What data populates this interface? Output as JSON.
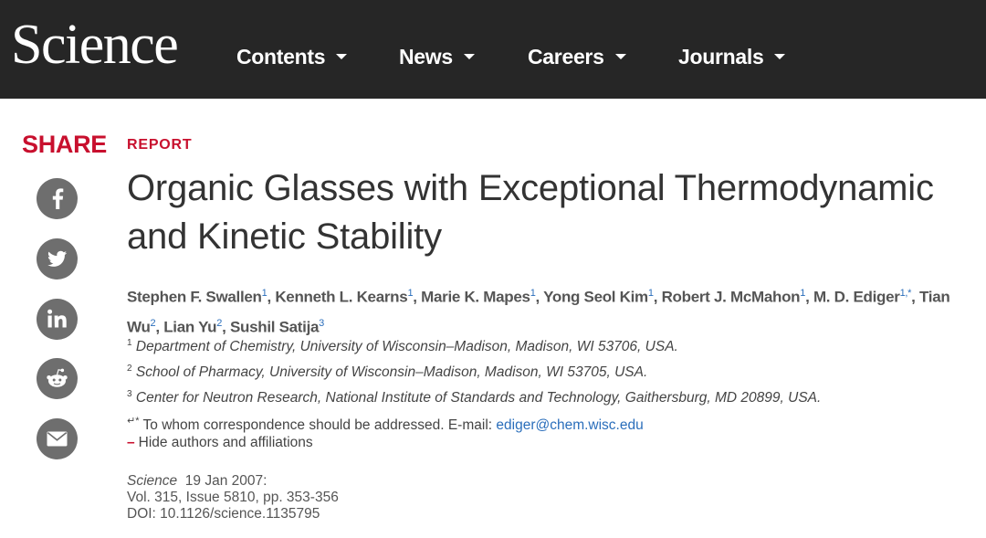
{
  "header": {
    "logo": "Science",
    "nav": [
      {
        "label": "Contents"
      },
      {
        "label": "News"
      },
      {
        "label": "Careers"
      },
      {
        "label": "Journals"
      }
    ]
  },
  "share": {
    "title": "SHARE",
    "buttons": [
      {
        "icon": "facebook-icon"
      },
      {
        "icon": "twitter-icon"
      },
      {
        "icon": "linkedin-icon"
      },
      {
        "icon": "reddit-icon"
      },
      {
        "icon": "email-icon"
      }
    ]
  },
  "article": {
    "type_label": "REPORT",
    "title_line1": "Organic Glasses with Exceptional Thermodynamic",
    "title_line2": "and Kinetic Stability",
    "authors": [
      {
        "name": "Stephen F. Swallen",
        "sup": "1"
      },
      {
        "name": "Kenneth L. Kearns",
        "sup": "1"
      },
      {
        "name": "Marie K. Mapes",
        "sup": "1"
      },
      {
        "name": "Yong Seol Kim",
        "sup": "1"
      },
      {
        "name": "Robert J. McMahon",
        "sup": "1"
      },
      {
        "name": "M. D. Ediger",
        "sup": "1,*"
      },
      {
        "name": "Tian Wu",
        "sup": "2"
      },
      {
        "name": "Lian Yu",
        "sup": "2"
      },
      {
        "name": "Sushil Satija",
        "sup": "3"
      }
    ],
    "affiliations": [
      {
        "num": "1",
        "text": "Department of Chemistry, University of Wisconsin–Madison, Madison, WI 53706, USA."
      },
      {
        "num": "2",
        "text": "School of Pharmacy, University of Wisconsin–Madison, Madison, WI 53705, USA."
      },
      {
        "num": "3",
        "text": "Center for Neutron Research, National Institute of Standards and Technology, Gaithersburg, MD 20899, USA."
      }
    ],
    "correspondence": {
      "mark": "↵*",
      "text": "To whom correspondence should be addressed. E-mail: ",
      "email": "ediger@chem.wisc.edu"
    },
    "hide_toggle": {
      "symbol": "–",
      "label": "Hide authors and affiliations"
    },
    "citation": {
      "journal": "Science",
      "date": "19 Jan 2007:",
      "volume": "Vol. 315, Issue 5810, pp. 353-356",
      "doi": "DOI: 10.1126/science.1135795"
    }
  }
}
